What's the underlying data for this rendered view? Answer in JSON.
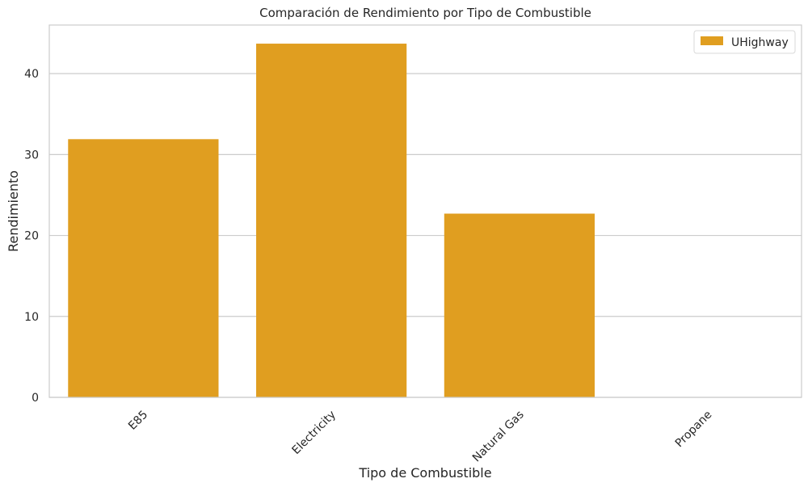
{
  "chart_data": {
    "type": "bar",
    "title": "Comparación de Rendimiento por Tipo de Combustible",
    "xlabel": "Tipo de Combustible",
    "ylabel": "Rendimiento",
    "categories": [
      "E85",
      "Electricity",
      "Natural Gas",
      "Propane"
    ],
    "series": [
      {
        "name": "UHighway",
        "values": [
          31.9,
          43.7,
          22.7,
          0
        ],
        "color": "#E09E20"
      }
    ],
    "ylim": [
      0,
      46
    ],
    "yticks": [
      0,
      10,
      20,
      30,
      40
    ],
    "grid": "horizontal",
    "legend_position": "top-right",
    "xtick_rotation": "45"
  }
}
